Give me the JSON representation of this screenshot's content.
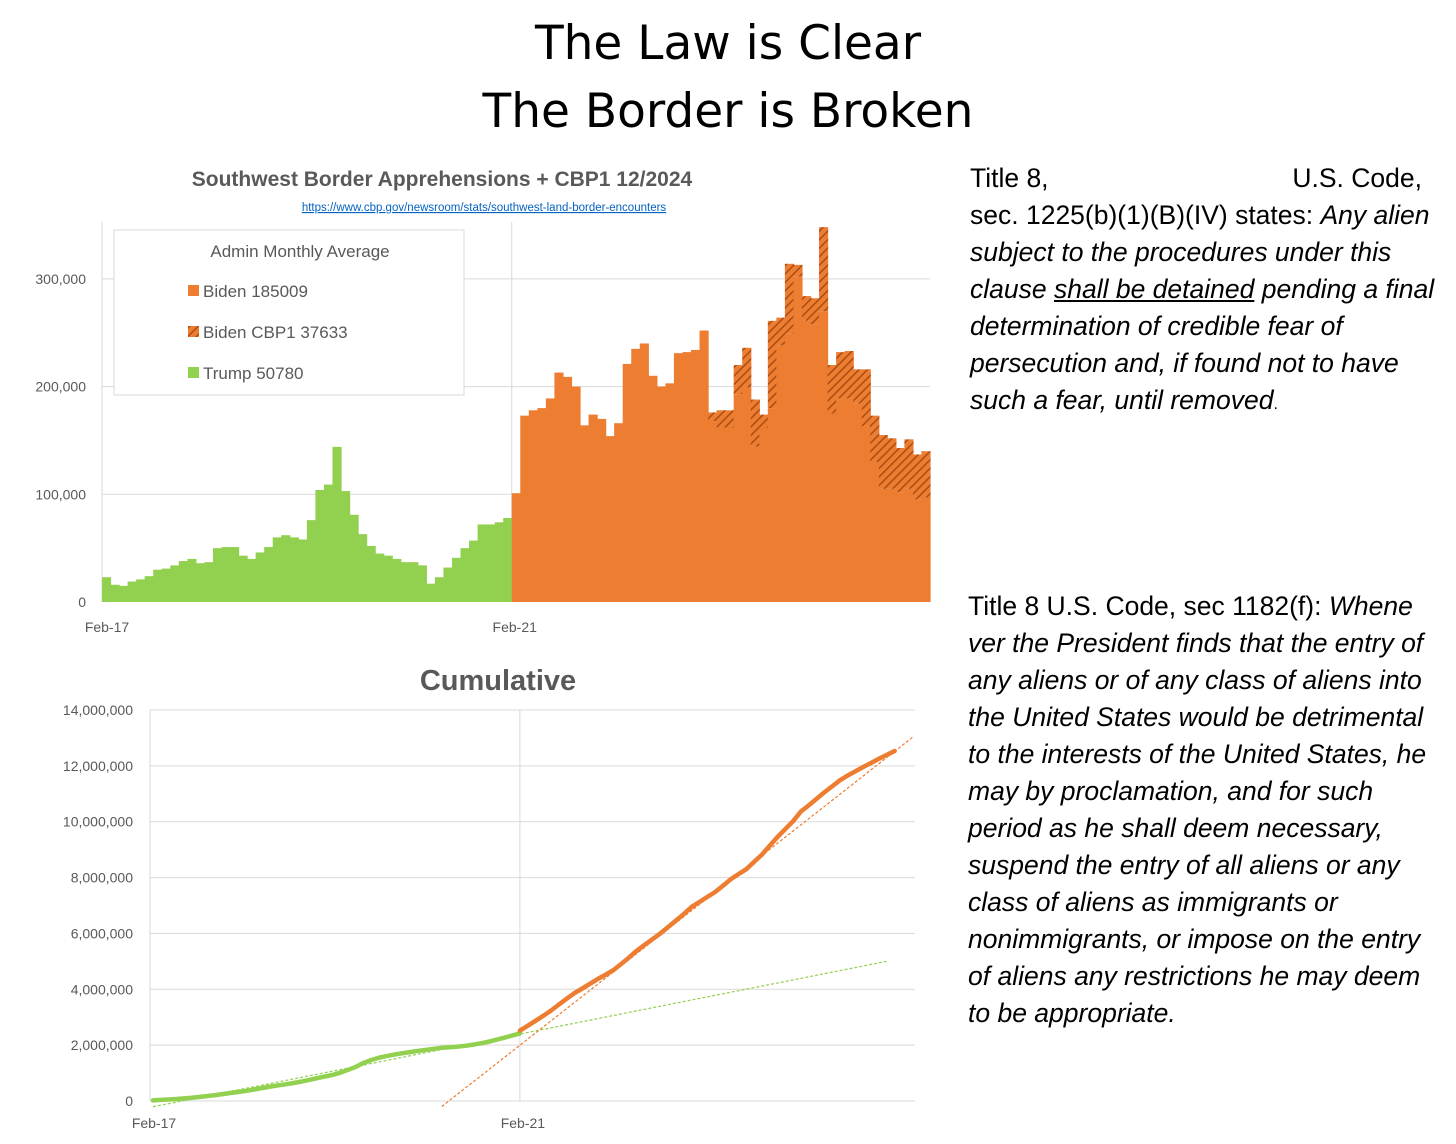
{
  "header": {
    "line1": "The Law is Clear",
    "line2": "The Border is Broken"
  },
  "colors": {
    "trump": "#92d050",
    "biden": "#ed7d31",
    "hatch": "#a94d15",
    "grid": "#d9d9d9",
    "axis_text": "#595959",
    "title_text": "#595959",
    "link": "#0563c1"
  },
  "chart_data": [
    {
      "type": "bar",
      "title": "Southwest Border Apprehensions + CBP1 12/2024",
      "subtitle": "https://www.cbp.gov/newsroom/stats/southwest-land-border-encounters",
      "x_tick_labels": [
        "Feb-17",
        "Feb-21"
      ],
      "ylim": [
        0,
        350000
      ],
      "yticks": [
        0,
        100000,
        200000,
        300000
      ],
      "ytick_labels": [
        "0",
        "100,000",
        "200,000",
        "300,000"
      ],
      "grid": true,
      "legend": {
        "title": "Admin Monthly Average",
        "position": "top-left",
        "entries": [
          "Biden 185009",
          "Biden CBP1 37633",
          "Trump 50780"
        ]
      },
      "series": [
        {
          "name": "Trump",
          "values": [
            23000,
            16000,
            15000,
            19000,
            21000,
            24000,
            30000,
            31000,
            34000,
            38000,
            40000,
            36000,
            37000,
            50000,
            51000,
            51000,
            43000,
            40000,
            46000,
            51000,
            60000,
            62000,
            60000,
            58000,
            76000,
            104000,
            109000,
            144000,
            103000,
            81000,
            63000,
            52000,
            45000,
            43000,
            40000,
            37000,
            37000,
            34000,
            17000,
            23000,
            32000,
            41000,
            50000,
            57000,
            72000,
            72000,
            74000,
            78000
          ]
        },
        {
          "name": "Biden",
          "values": [
            101000,
            173000,
            178000,
            180000,
            189000,
            213000,
            209000,
            200000,
            164000,
            174000,
            170000,
            154000,
            166000,
            221000,
            235000,
            240000,
            210000,
            200000,
            203000,
            231000,
            232000,
            234000,
            252000,
            168000,
            162000,
            162000,
            193000,
            199000,
            144000,
            162000,
            180000,
            238000,
            249000,
            302000,
            261000,
            258000,
            270000,
            175000,
            189000,
            189000,
            184000,
            163000,
            130000,
            105000,
            105000,
            102000,
            105000,
            95000,
            97000
          ]
        },
        {
          "name": "Biden CBP1",
          "values": [
            0,
            0,
            0,
            0,
            0,
            0,
            0,
            0,
            0,
            0,
            0,
            0,
            0,
            0,
            0,
            0,
            0,
            0,
            0,
            0,
            0,
            0,
            0,
            8000,
            16000,
            16000,
            27000,
            37000,
            44000,
            12000,
            81000,
            26000,
            65000,
            11000,
            23000,
            24000,
            78000,
            45000,
            43000,
            44000,
            32000,
            53000,
            43000,
            50000,
            47000,
            41000,
            46000,
            42000,
            43000
          ]
        }
      ]
    },
    {
      "type": "line",
      "title": "Cumulative",
      "x_tick_labels": [
        "Feb-17",
        "Feb-21"
      ],
      "ylim": [
        0,
        14000000
      ],
      "yticks": [
        0,
        2000000,
        4000000,
        6000000,
        8000000,
        10000000,
        12000000,
        14000000
      ],
      "ytick_labels": [
        "0",
        "2,000,000",
        "4,000,000",
        "6,000,000",
        "8,000,000",
        "10,000,000",
        "12,000,000",
        "14,000,000"
      ],
      "grid": true,
      "series": [
        {
          "name": "Trump",
          "values": [
            23000,
            39000,
            54000,
            73000,
            94000,
            118000,
            148000,
            179000,
            213000,
            251000,
            291000,
            327000,
            364000,
            414000,
            465000,
            516000,
            559000,
            599000,
            645000,
            696000,
            756000,
            818000,
            878000,
            936000,
            1012000,
            1116000,
            1225000,
            1369000,
            1472000,
            1553000,
            1616000,
            1668000,
            1713000,
            1756000,
            1796000,
            1833000,
            1870000,
            1904000,
            1921000,
            1944000,
            1976000,
            2017000,
            2067000,
            2124000,
            2196000,
            2268000,
            2342000,
            2420000
          ]
        },
        {
          "name": "Biden",
          "values": [
            2521000,
            2694000,
            2872000,
            3052000,
            3241000,
            3454000,
            3663000,
            3863000,
            4027000,
            4201000,
            4371000,
            4525000,
            4691000,
            4912000,
            5147000,
            5387000,
            5597000,
            5797000,
            6000000,
            6231000,
            6463000,
            6697000,
            6949000,
            7125000,
            7303000,
            7481000,
            7701000,
            7937000,
            8125000,
            8299000,
            8560000,
            8824000,
            9138000,
            9451000,
            9735000,
            10017000,
            10365000,
            10585000,
            10817000,
            11050000,
            11266000,
            11482000,
            11655000,
            11810000,
            11962000,
            12105000,
            12256000,
            12393000,
            12533000
          ]
        }
      ]
    }
  ],
  "laws": {
    "law1": {
      "head_left": "Title 8,",
      "head_right": "U.S. Code,",
      "line2_normal": "sec. 1225(b)(1)(B)(IV) states: ",
      "line2_italic": "Any alien",
      "italic_a": "subject to the procedures under this clause ",
      "underlined": "shall be detained",
      "italic_b": " pending a final determination of credible fear of persecution and, if found not to have such a fear, until removed",
      "end": "."
    },
    "law2": {
      "normal": "Title 8 U.S. Code, sec 1182(f): ",
      "italic": "Whene ver the President finds that the entry of any aliens or of any class of aliens into the United States would be detrimental to the interests of the United States, he may by proclamation, and for such period as he shall deem necessary, suspend the entry of all aliens or any class of aliens as immigrants or nonimmigrants, or impose on the entry of aliens any restrictions he may deem to be appropriate."
    }
  }
}
